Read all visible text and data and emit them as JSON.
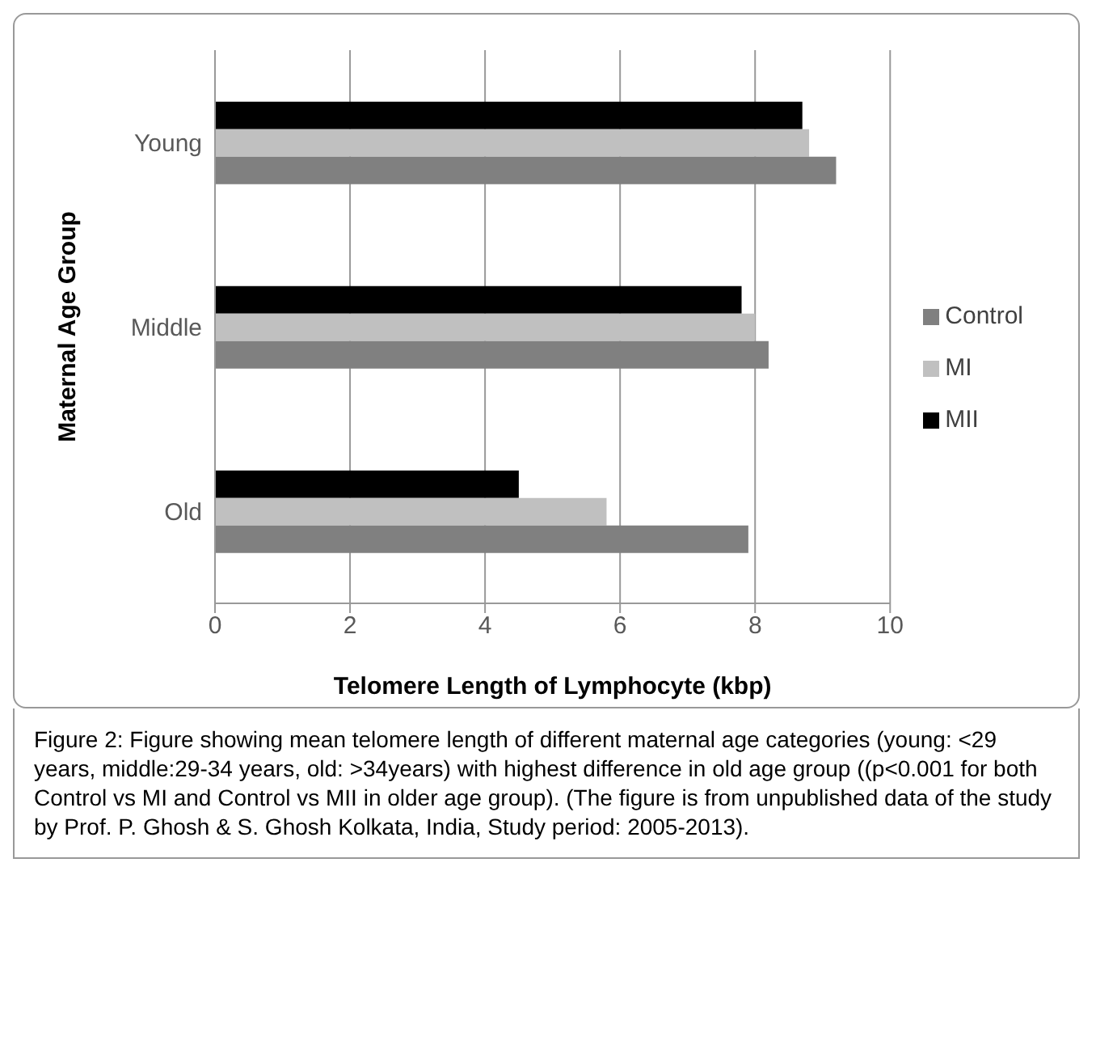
{
  "chart_data": {
    "type": "bar",
    "orientation": "horizontal",
    "categories": [
      "Young",
      "Middle",
      "Old"
    ],
    "series": [
      {
        "name": "MII",
        "color": "#000000",
        "values": [
          8.7,
          7.8,
          4.5
        ]
      },
      {
        "name": "MI",
        "color": "#c0c0c0",
        "values": [
          8.8,
          8.0,
          5.8
        ]
      },
      {
        "name": "Control",
        "color": "#808080",
        "values": [
          9.2,
          8.2,
          7.9
        ]
      }
    ],
    "xlim": [
      0,
      10
    ],
    "xticks": [
      0,
      2,
      4,
      6,
      8,
      10
    ],
    "xlabel": "Telomere Length of Lymphocyte (kbp)",
    "ylabel": "Maternal Age Group",
    "grid": "x",
    "legend": "right",
    "annotations": [
      "Figure 2: Figure showing mean telomere length of different maternal age categories (young: <29 years, middle:29-34 years, old: >34years) with highest difference in old age group ((p<0.001 for both Control vs MI and Control vs MII in older age group). (The figure is from unpublished data of the study by Prof. P. Ghosh & S. Ghosh Kolkata, India, Study period: 2005-2013)."
    ]
  }
}
